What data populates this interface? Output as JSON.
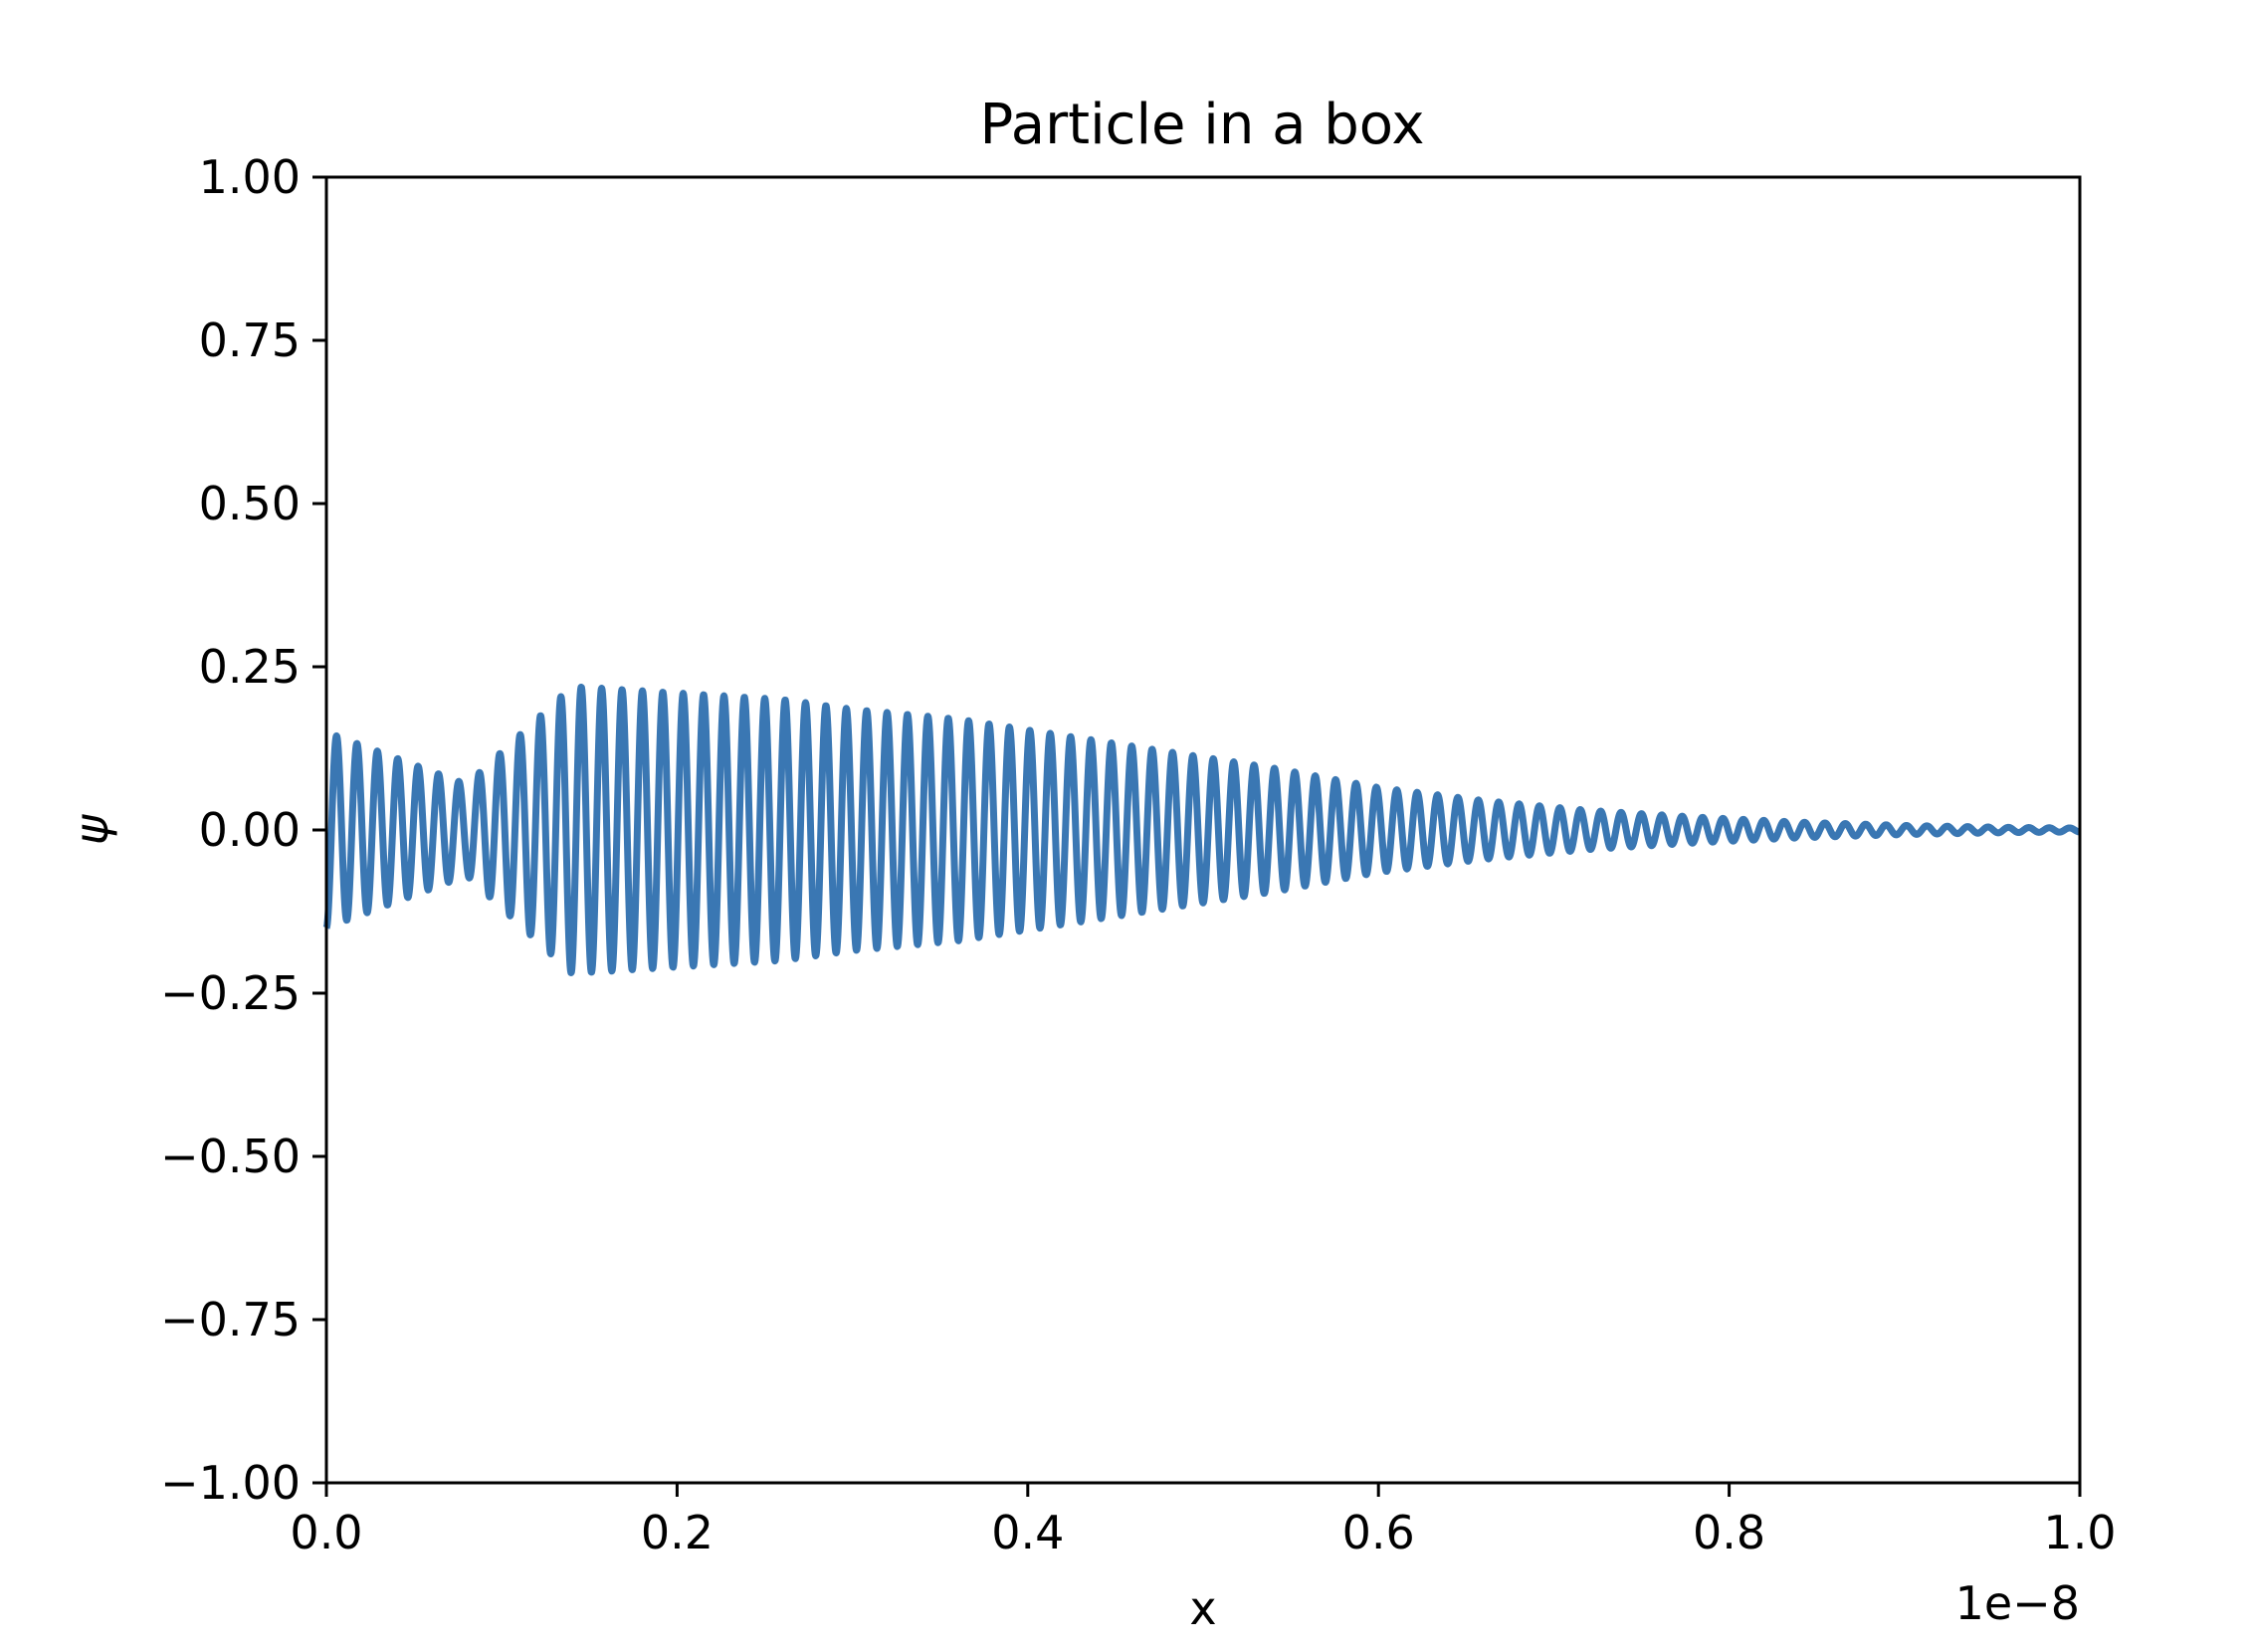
{
  "chart_data": {
    "type": "line",
    "title": "Particle in a box",
    "xlabel": "x",
    "ylabel": "ψ",
    "x_offset_label": "1e−8",
    "xlim": [
      0,
      1e-08
    ],
    "ylim": [
      -1.0,
      1.0
    ],
    "x_ticks": [
      0.0,
      0.2,
      0.4,
      0.6,
      0.8,
      1.0
    ],
    "x_tick_labels": [
      "0.0",
      "0.2",
      "0.4",
      "0.6",
      "0.8",
      "1.0"
    ],
    "y_ticks": [
      1.0,
      0.75,
      0.5,
      0.25,
      0.0,
      -0.25,
      -0.5,
      -0.75,
      -1.0
    ],
    "y_tick_labels": [
      "1.00",
      "0.75",
      "0.50",
      "0.25",
      "0.00",
      "−0.25",
      "−0.50",
      "−0.75",
      "−1.00"
    ],
    "grid": false,
    "legend": "none",
    "line_color": "#3a77b3",
    "series": [
      {
        "x": [
          0.0,
          0.08,
          0.14,
          0.2,
          0.26,
          0.3,
          0.36,
          0.42,
          0.48,
          0.54,
          0.6,
          0.66,
          0.72,
          0.78,
          0.84,
          0.9,
          0.96,
          1.0
        ],
        "envelope": [
          0.15,
          0.07,
          0.22,
          0.21,
          0.2,
          0.185,
          0.17,
          0.145,
          0.12,
          0.095,
          0.065,
          0.045,
          0.03,
          0.02,
          0.012,
          0.007,
          0.004,
          0.003
        ]
      }
    ]
  }
}
